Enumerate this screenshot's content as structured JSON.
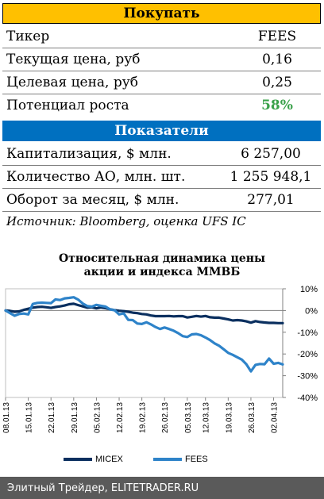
{
  "buy_section": {
    "header": "Покупать",
    "rows": [
      {
        "label": "Тикер",
        "value": "FEES"
      },
      {
        "label": "Текущая цена, руб",
        "value": "0,16"
      },
      {
        "label": "Целевая цена, руб",
        "value": "0,25"
      },
      {
        "label": "Потенциал роста",
        "value": "58%"
      }
    ]
  },
  "indicators_section": {
    "header": "Показатели",
    "rows": [
      {
        "label": "Капитализация, $ млн.",
        "value": "6 257,00"
      },
      {
        "label": "Количество АО, млн. шт.",
        "value": "1 255 948,1"
      },
      {
        "label": "Оборот за месяц, $ млн.",
        "value": "277,01"
      }
    ]
  },
  "source": "Источник: Bloomberg, оценка UFS IC",
  "footer": "Элитный Трейдер, ELITETRADER.RU",
  "colors": {
    "micex": "#0a2f5f",
    "fees": "#2e83c9",
    "header_yellow": "#ffc000",
    "header_blue": "#0070c0",
    "growth": "#3aa14a"
  },
  "chart_data": {
    "type": "line",
    "title_line1": "Относительная динамика цены",
    "title_line2": "акции и индекса ММВБ",
    "x": [
      "08.01.13",
      "09.01.13",
      "10.01.13",
      "11.01.13",
      "14.01.13",
      "15.01.13",
      "16.01.13",
      "17.01.13",
      "18.01.13",
      "21.01.13",
      "22.01.13",
      "23.01.13",
      "24.01.13",
      "25.01.13",
      "28.01.13",
      "29.01.13",
      "30.01.13",
      "31.01.13",
      "01.02.13",
      "04.02.13",
      "05.02.13",
      "06.02.13",
      "07.02.13",
      "08.02.13",
      "11.02.13",
      "12.02.13",
      "13.02.13",
      "14.02.13",
      "15.02.13",
      "18.02.13",
      "19.02.13",
      "20.02.13",
      "21.02.13",
      "22.02.13",
      "25.02.13",
      "26.02.13",
      "27.02.13",
      "28.02.13",
      "01.03.13",
      "04.03.13",
      "05.03.13",
      "06.03.13",
      "07.03.13",
      "11.03.13",
      "12.03.13",
      "13.03.13",
      "14.03.13",
      "15.03.13",
      "18.03.13",
      "19.03.13",
      "20.03.13",
      "21.03.13",
      "22.03.13",
      "25.03.13",
      "26.03.13",
      "27.03.13",
      "28.03.13",
      "29.03.13",
      "01.04.13",
      "02.04.13",
      "03.04.13",
      "04.04.13"
    ],
    "x_ticks": [
      "08.01.13",
      "15.01.13",
      "22.01.13",
      "29.01.13",
      "05.02.13",
      "12.02.13",
      "19.02.13",
      "26.02.13",
      "05.03.13",
      "12.03.13",
      "19.03.13",
      "26.03.13",
      "02.04.13"
    ],
    "series": [
      {
        "name": "MICEX",
        "values": [
          0.0,
          -0.2,
          -0.6,
          -0.4,
          0.3,
          0.8,
          1.3,
          1.6,
          1.7,
          1.5,
          1.2,
          1.6,
          1.9,
          2.3,
          2.9,
          3.1,
          2.5,
          1.9,
          1.3,
          1.5,
          1.0,
          1.4,
          1.1,
          0.6,
          0.2,
          -0.1,
          -0.3,
          -0.6,
          -1.0,
          -1.2,
          -1.6,
          -1.8,
          -2.3,
          -2.6,
          -2.6,
          -2.6,
          -2.5,
          -2.7,
          -2.6,
          -2.6,
          -3.2,
          -2.9,
          -2.5,
          -2.8,
          -2.5,
          -3.1,
          -3.3,
          -3.3,
          -3.7,
          -4.1,
          -4.6,
          -4.4,
          -4.6,
          -5.0,
          -5.6,
          -4.9,
          -5.3,
          -5.5,
          -5.7,
          -5.7,
          -5.8,
          -5.8
        ]
      },
      {
        "name": "FEES",
        "values": [
          0.0,
          -1.2,
          -2.4,
          -1.6,
          -1.4,
          -1.8,
          3.0,
          3.5,
          3.6,
          3.5,
          3.4,
          5.1,
          4.8,
          5.6,
          5.8,
          6.1,
          5.0,
          3.2,
          2.0,
          1.8,
          2.6,
          2.2,
          1.8,
          0.5,
          0.1,
          -1.8,
          -1.3,
          -4.3,
          -4.4,
          -6.0,
          -6.2,
          -5.4,
          -6.4,
          -7.6,
          -8.5,
          -7.8,
          -8.5,
          -9.3,
          -10.4,
          -11.8,
          -12.2,
          -11.0,
          -10.8,
          -11.4,
          -12.4,
          -13.6,
          -15.1,
          -16.2,
          -17.8,
          -19.5,
          -20.4,
          -21.5,
          -22.6,
          -24.7,
          -28.0,
          -25.0,
          -24.6,
          -24.7,
          -22.1,
          -24.5,
          -24.1,
          -24.8
        ]
      }
    ],
    "ylim": [
      -40,
      10
    ],
    "y_ticks": [
      "10%",
      "0%",
      "-10%",
      "-20%",
      "-30%",
      "-40%"
    ],
    "legend_position": "bottom"
  }
}
